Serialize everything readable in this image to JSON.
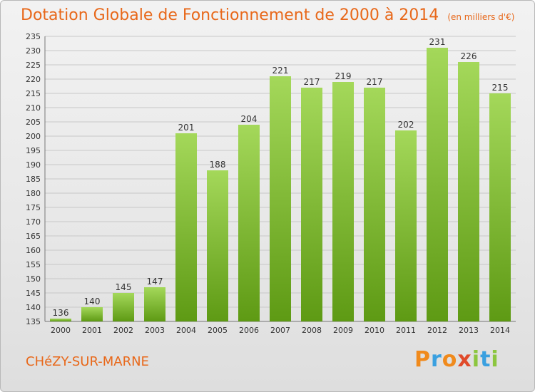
{
  "header": {
    "title": "Dotation Globale de Fonctionnement de 2000 à 2014",
    "unit_note": "(en milliers d'€)"
  },
  "footer": {
    "commune": "CHéZY-SUR-MARNE",
    "brand_letters": [
      "P",
      "r",
      "o",
      "x",
      "i",
      "t",
      "i"
    ],
    "brand_colors": [
      "#f08a1c",
      "#3aa0e0",
      "#f08a1c",
      "#e04a2a",
      "#8cc63f",
      "#3aa0e0",
      "#8cc63f"
    ]
  },
  "colors": {
    "title": "#e8681a",
    "bar_light": "#a4d85a",
    "bar_dark": "#5e9a14",
    "grid": "#c8c8c8"
  },
  "chart_data": {
    "type": "bar",
    "title": "Dotation Globale de Fonctionnement de 2000 à 2014",
    "subtitle": "(en milliers d'€)",
    "xlabel": "",
    "ylabel": "",
    "categories": [
      "2000",
      "2001",
      "2002",
      "2003",
      "2004",
      "2005",
      "2006",
      "2007",
      "2008",
      "2009",
      "2010",
      "2011",
      "2012",
      "2013",
      "2014"
    ],
    "values": [
      136,
      140,
      145,
      147,
      201,
      188,
      204,
      221,
      217,
      219,
      217,
      202,
      231,
      226,
      215
    ],
    "ylim": [
      135,
      235
    ],
    "ytick_step": 5,
    "grid": true,
    "data_labels": true
  }
}
